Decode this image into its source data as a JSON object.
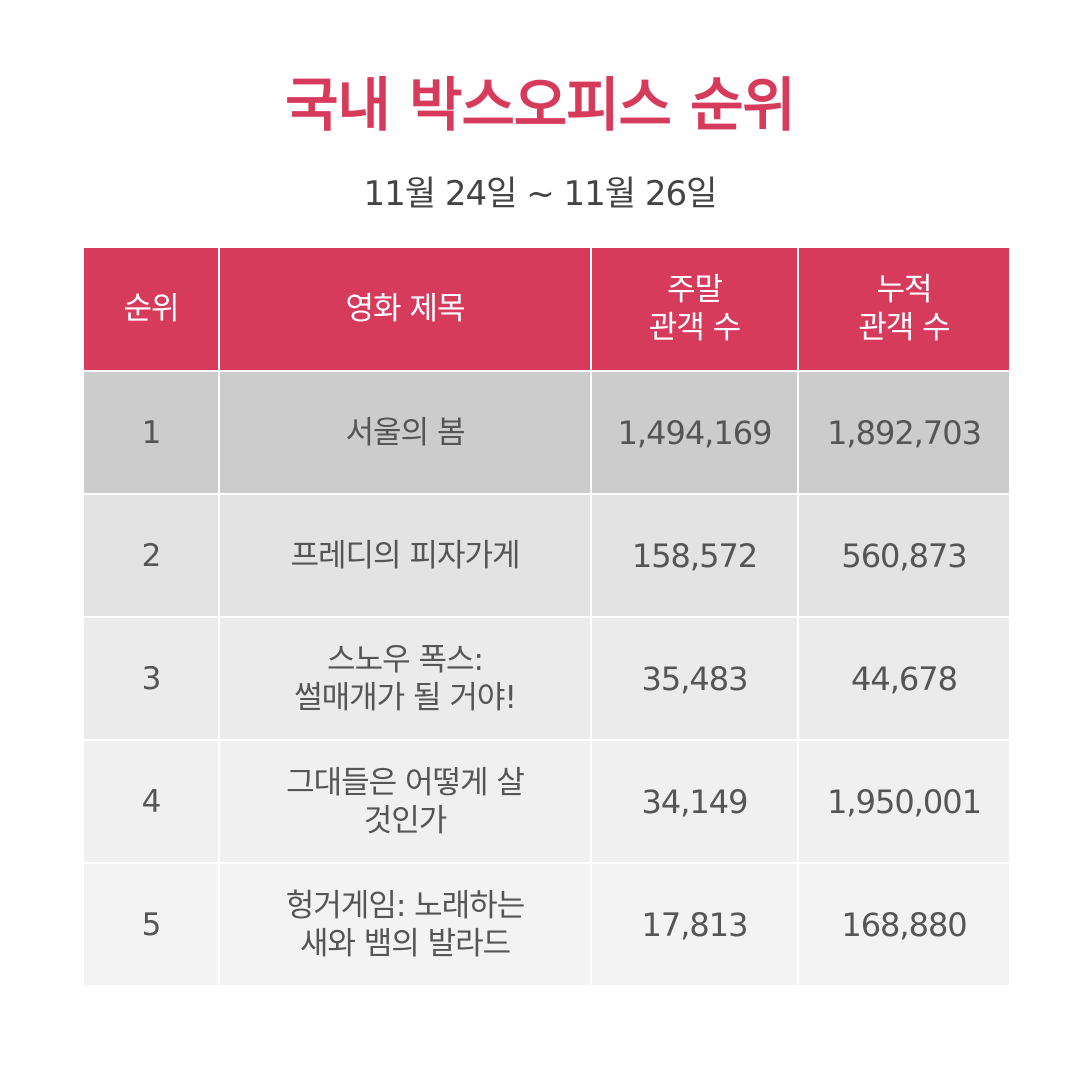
{
  "title": "국내 박스오피스 순위",
  "date_range": "11월 24일 ~ 11월 26일",
  "colors": {
    "accent": "#d73b5c",
    "text": "#555555"
  },
  "table": {
    "headers": [
      {
        "lines": [
          "순위"
        ]
      },
      {
        "lines": [
          "영화 제목"
        ]
      },
      {
        "lines": [
          "주말",
          "관객 수"
        ]
      },
      {
        "lines": [
          "누적",
          "관객 수"
        ]
      }
    ],
    "rows": [
      {
        "rank": "1",
        "title_lines": [
          "서울의 봄"
        ],
        "weekend": "1,494,169",
        "total": "1,892,703"
      },
      {
        "rank": "2",
        "title_lines": [
          "프레디의 피자가게"
        ],
        "weekend": "158,572",
        "total": "560,873"
      },
      {
        "rank": "3",
        "title_lines": [
          "스노우 폭스:",
          "썰매개가 될 거야!"
        ],
        "weekend": "35,483",
        "total": "44,678"
      },
      {
        "rank": "4",
        "title_lines": [
          "그대들은 어떻게 살",
          "것인가"
        ],
        "weekend": "34,149",
        "total": "1,950,001"
      },
      {
        "rank": "5",
        "title_lines": [
          "헝거게임: 노래하는",
          "새와 뱀의 발라드"
        ],
        "weekend": "17,813",
        "total": "168,880"
      }
    ]
  }
}
